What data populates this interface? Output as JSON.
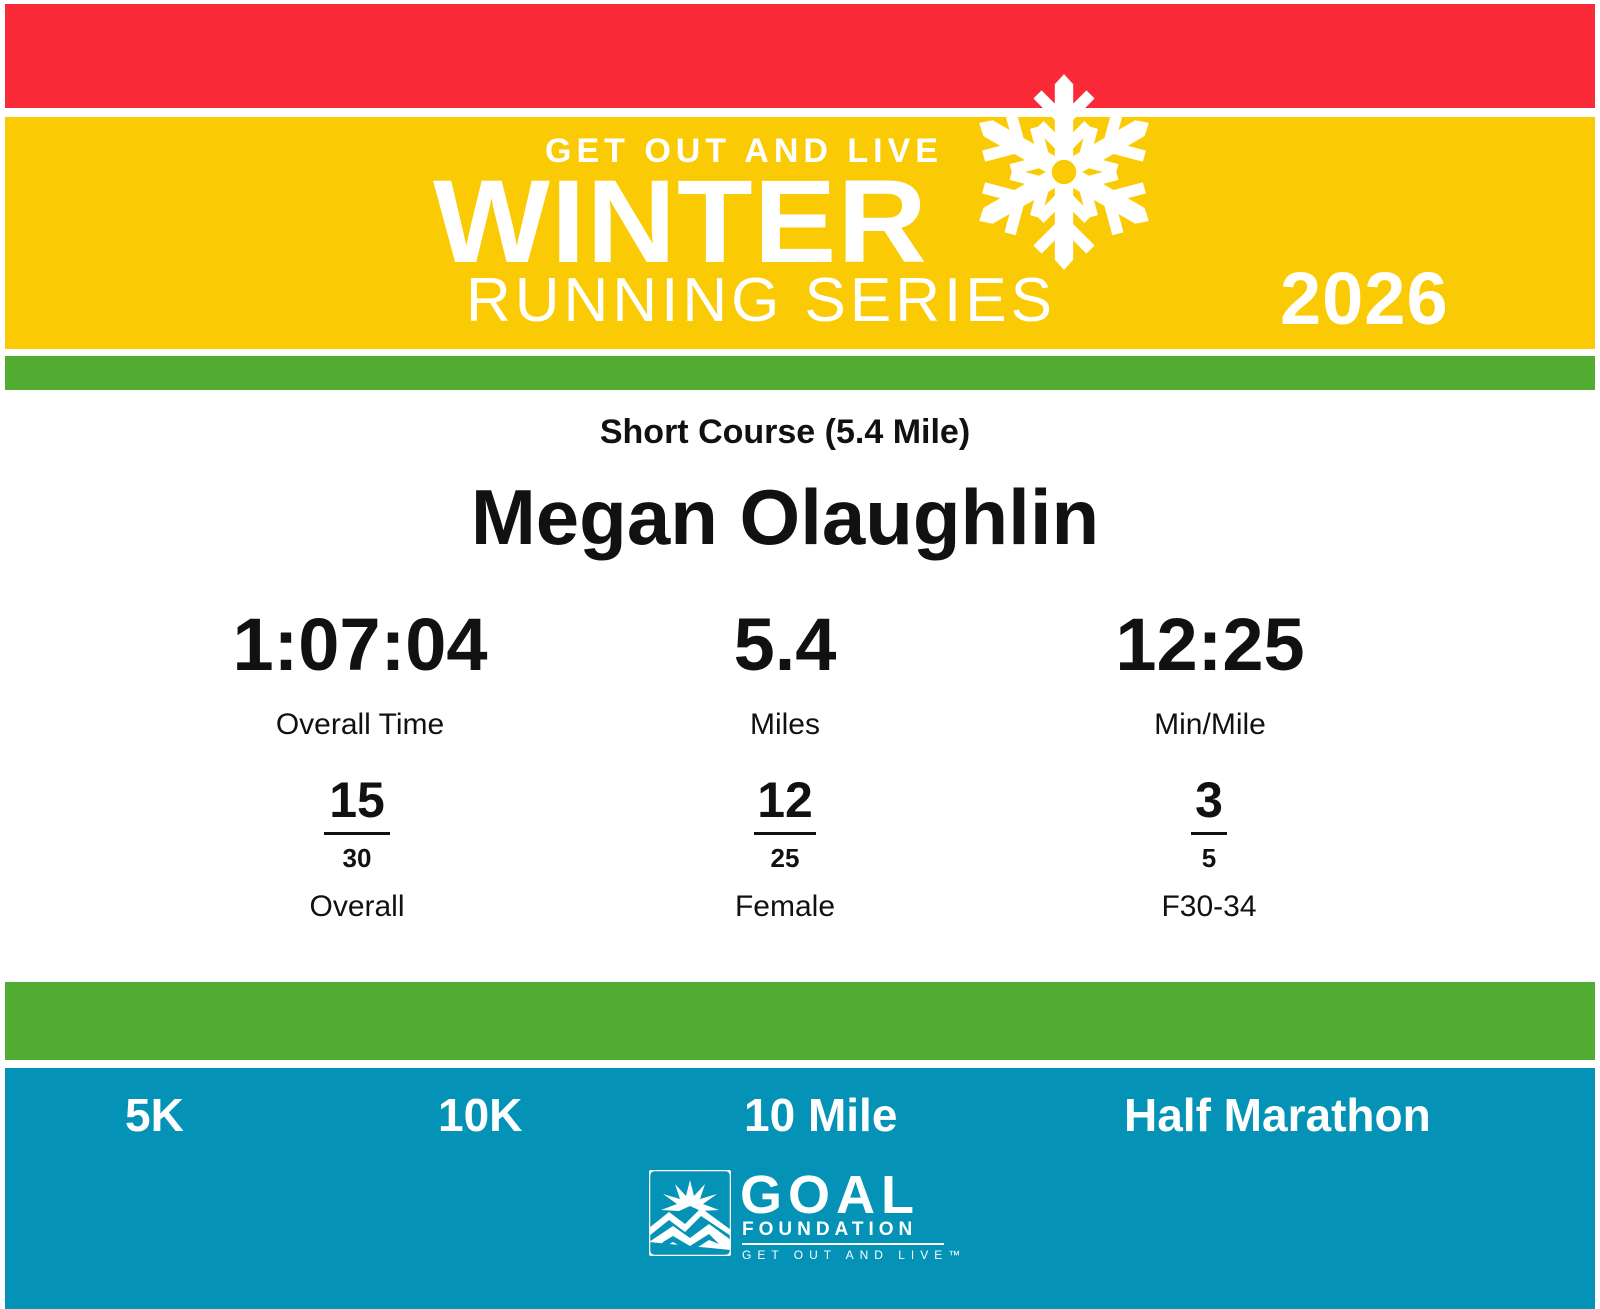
{
  "header": {
    "tagline": "GET OUT AND LIVE",
    "title": "WINTER",
    "subtitle": "RUNNING SERIES",
    "year": "2026",
    "icon": "snowflake-icon",
    "colors": {
      "red": "#fb2a39",
      "yellow": "#facb04",
      "green": "#52ac32",
      "blue": "#0493b6"
    }
  },
  "result": {
    "course": "Short Course (5.4 Mile)",
    "name": "Megan Olaughlin",
    "stats": [
      {
        "value": "1:07:04",
        "label": "Overall Time"
      },
      {
        "value": "5.4",
        "label": "Miles"
      },
      {
        "value": "12:25",
        "label": "Min/Mile"
      }
    ],
    "ranks": [
      {
        "place": "15",
        "total": "30",
        "label": "Overall"
      },
      {
        "place": "12",
        "total": "25",
        "label": "Female"
      },
      {
        "place": "3",
        "total": "5",
        "label": "F30-34"
      }
    ]
  },
  "footer": {
    "races": [
      "5K",
      "10K",
      "10 Mile",
      "Half Marathon"
    ],
    "logo": {
      "title": "GOAL",
      "subtitle": "FOUNDATION",
      "tagline": "GET OUT AND LIVE™",
      "icon": "mountain-sun-icon"
    }
  }
}
